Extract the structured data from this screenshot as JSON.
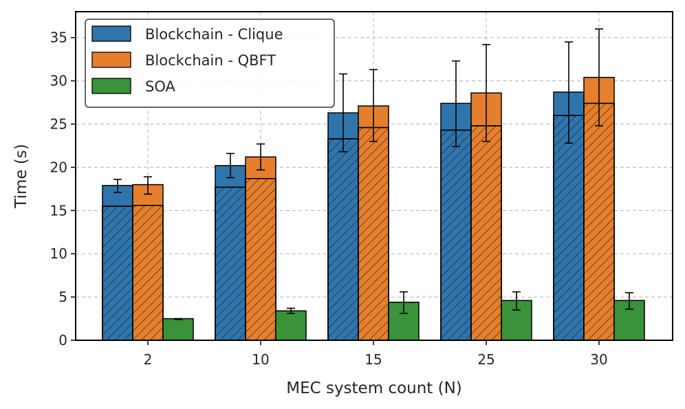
{
  "chart_data": {
    "type": "bar",
    "categories": [
      "2",
      "10",
      "15",
      "25",
      "30"
    ],
    "xlabel": "MEC system count (N)",
    "ylabel": "Time (s)",
    "ylim": [
      0,
      38
    ],
    "yticks": [
      0,
      5,
      10,
      15,
      20,
      25,
      30,
      35
    ],
    "grid": true,
    "legend_position": "top-left",
    "series": [
      {
        "name": "Blockchain - Clique",
        "color": "#2f75ac",
        "values": [
          17.9,
          20.2,
          26.3,
          27.4,
          28.7
        ],
        "hatched_portion": [
          15.5,
          17.7,
          23.3,
          24.3,
          26.0
        ],
        "error_low": [
          17.1,
          18.8,
          21.8,
          22.4,
          22.8
        ],
        "error_high": [
          18.6,
          21.6,
          30.8,
          32.3,
          34.5
        ]
      },
      {
        "name": "Blockchain - QBFT",
        "color": "#e57f2d",
        "values": [
          18.0,
          21.2,
          27.1,
          28.6,
          30.4
        ],
        "hatched_portion": [
          15.6,
          18.7,
          24.6,
          24.8,
          27.4
        ],
        "error_low": [
          16.9,
          19.7,
          23.0,
          23.0,
          24.8
        ],
        "error_high": [
          18.9,
          22.7,
          31.3,
          34.2,
          36.0
        ]
      },
      {
        "name": "SOA",
        "color": "#3a923a",
        "values": [
          2.5,
          3.4,
          4.4,
          4.6,
          4.6
        ],
        "error_low": [
          2.4,
          3.1,
          3.1,
          3.5,
          3.6
        ],
        "error_high": [
          2.5,
          3.7,
          5.6,
          5.6,
          5.5
        ]
      }
    ]
  }
}
